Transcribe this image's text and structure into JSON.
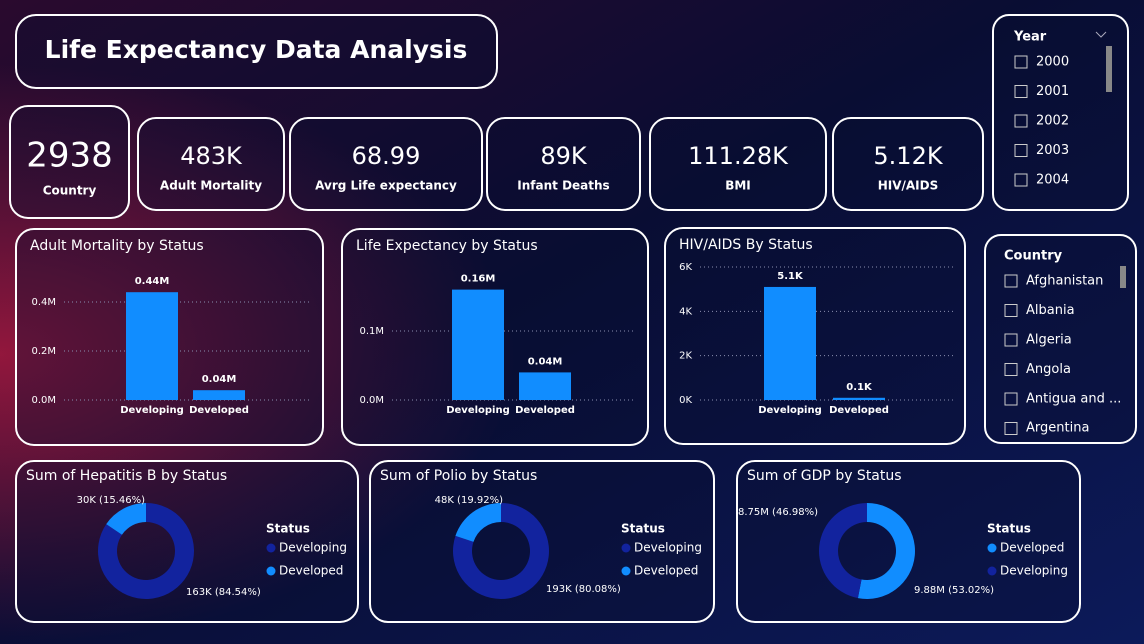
{
  "header": {
    "title": "Life Expectancy Data Analysis"
  },
  "kpis": [
    {
      "value": "2938",
      "label": "Country"
    },
    {
      "value": "483K",
      "label": "Adult Mortality"
    },
    {
      "value": "68.99",
      "label": "Avrg Life expectancy"
    },
    {
      "value": "89K",
      "label": "Infant Deaths"
    },
    {
      "value": "111.28K",
      "label": "BMI"
    },
    {
      "value": "5.12K",
      "label": "HIV/AIDS"
    }
  ],
  "year_slicer": {
    "title": "Year",
    "items": [
      "2000",
      "2001",
      "2002",
      "2003",
      "2004"
    ]
  },
  "country_slicer": {
    "title": "Country",
    "items": [
      "Afghanistan",
      "Albania",
      "Algeria",
      "Angola",
      "Antigua and ...",
      "Argentina"
    ]
  },
  "chart_data": [
    {
      "type": "bar",
      "title": "Adult Mortality by Status",
      "categories": [
        "Developing",
        "Developed"
      ],
      "values": [
        440000,
        40000
      ],
      "value_labels": [
        "0.44M",
        "0.04M"
      ],
      "color": "#118dff",
      "ylim": [
        0,
        500000
      ],
      "yticks": [
        {
          "value": 0,
          "label": "0.0M"
        },
        {
          "value": 200000,
          "label": "0.2M"
        },
        {
          "value": 400000,
          "label": "0.4M"
        }
      ],
      "grid": true
    },
    {
      "type": "bar",
      "title": "Life Expectancy by Status",
      "categories": [
        "Developing",
        "Developed"
      ],
      "values": [
        160000,
        40000
      ],
      "value_labels": [
        "0.16M",
        "0.04M"
      ],
      "color": "#118dff",
      "ylim": [
        0,
        200000
      ],
      "yticks": [
        {
          "value": 0,
          "label": "0.0M"
        },
        {
          "value": 100000,
          "label": "0.1M"
        }
      ],
      "grid": true
    },
    {
      "type": "bar",
      "title": "HIV/AIDS By Status",
      "categories": [
        "Developing",
        "Developed"
      ],
      "values": [
        5100,
        100
      ],
      "value_labels": [
        "5.1K",
        "0.1K"
      ],
      "color": "#118dff",
      "ylim": [
        0,
        6000
      ],
      "yticks": [
        {
          "value": 0,
          "label": "0K"
        },
        {
          "value": 2000,
          "label": "2K"
        },
        {
          "value": 4000,
          "label": "4K"
        },
        {
          "value": 6000,
          "label": "6K"
        }
      ],
      "grid": true
    },
    {
      "type": "donut",
      "title": "Sum of Hepatitis B by Status",
      "legend_title": "Status",
      "categories": [
        "Developing",
        "Developed"
      ],
      "colors": [
        "#12239e",
        "#118dff"
      ],
      "values": [
        163000,
        30000
      ],
      "value_labels": [
        "163K (84.54%)",
        "30K (15.46%)"
      ]
    },
    {
      "type": "donut",
      "title": "Sum of Polio by Status",
      "legend_title": "Status",
      "categories": [
        "Developing",
        "Developed"
      ],
      "colors": [
        "#12239e",
        "#118dff"
      ],
      "values": [
        193000,
        48000
      ],
      "value_labels": [
        "193K (80.08%)",
        "48K (19.92%)"
      ]
    },
    {
      "type": "donut",
      "title": "Sum of GDP by Status",
      "legend_title": "Status",
      "categories": [
        "Developed",
        "Developing"
      ],
      "colors": [
        "#118dff",
        "#12239e"
      ],
      "values": [
        9880000,
        8750000
      ],
      "value_labels": [
        "9.88M (53.02%)",
        "8.75M (46.98%)"
      ]
    }
  ]
}
